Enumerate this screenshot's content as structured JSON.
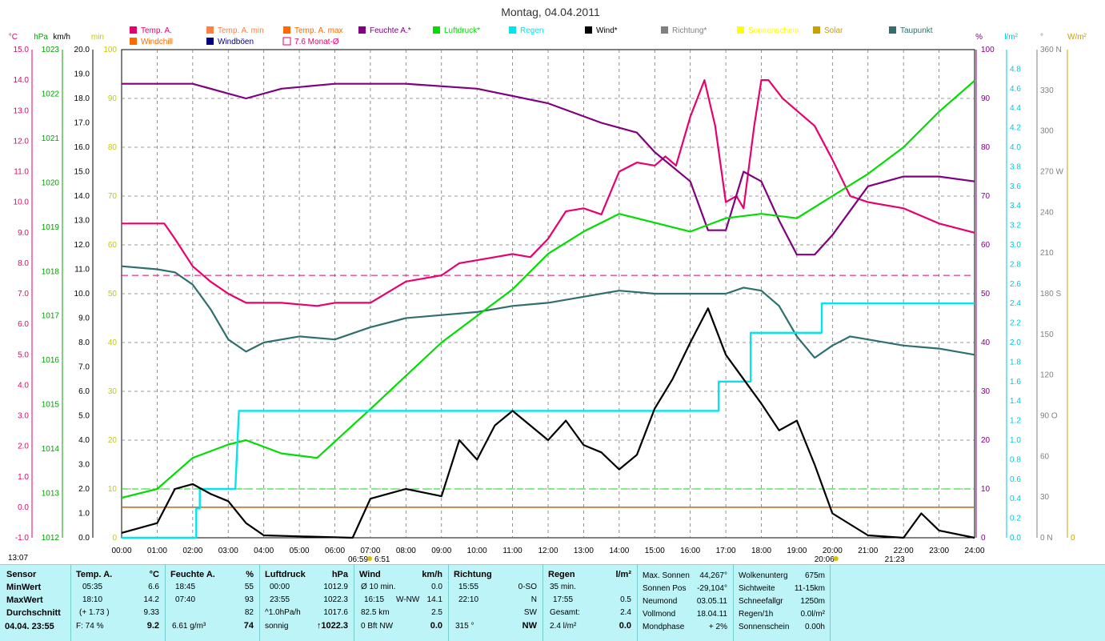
{
  "title": "Montag, 04.04.2011",
  "legend": [
    {
      "label": "Temp. A.",
      "color": "#e8006e",
      "kind": "fill"
    },
    {
      "label": "Temp. A. min",
      "color": "#ff8040",
      "kind": "fill"
    },
    {
      "label": "Temp. A. max",
      "color": "#ff6a00",
      "kind": "fill"
    },
    {
      "label": "Feuchte A.*",
      "color": "#800080",
      "kind": "fill"
    },
    {
      "label": "Luftdruck*",
      "color": "#00dd00",
      "kind": "fill"
    },
    {
      "label": "Regen",
      "color": "#00e5ee",
      "kind": "fill"
    },
    {
      "label": "Wind*",
      "color": "#000000",
      "kind": "fill"
    },
    {
      "label": "Richtung*",
      "color": "#808080",
      "kind": "fill"
    },
    {
      "label": "Sonnenschein",
      "color": "#ffff00",
      "kind": "fill"
    },
    {
      "label": "Solar",
      "color": "#c8a000",
      "kind": "fill"
    },
    {
      "label": "Taupunkt",
      "color": "#2f6f6f",
      "kind": "fill"
    },
    {
      "label": "Windchill",
      "color": "#ff6a00",
      "kind": "fill"
    },
    {
      "label": "Windböen",
      "color": "#000080",
      "kind": "fill"
    },
    {
      "label": "7.6 Monat-Ø",
      "color": "#e8006e",
      "kind": "outline"
    }
  ],
  "axis_units": {
    "temp": "°C",
    "press": "hPa",
    "wind": "km/h",
    "sun": "min",
    "hum": "%",
    "rain": "l/m²",
    "dir": "°",
    "solar": "W/m²"
  },
  "axis_colors": {
    "temp": "#e8006e",
    "press": "#00a000",
    "wind": "#000000",
    "sun": "#c8c800",
    "hum": "#800080",
    "rain": "#00c8d8",
    "dir": "#808080",
    "solar": "#c8a000"
  },
  "temp_ticks": [
    "15.0",
    "14.0",
    "13.0",
    "12.0",
    "11.0",
    "10.0",
    "9.0",
    "8.0",
    "7.0",
    "6.0",
    "5.0",
    "4.0",
    "3.0",
    "2.0",
    "1.0",
    "0.0",
    "-1.0"
  ],
  "press_ticks": [
    "1023",
    "1022",
    "1021",
    "1020",
    "1019",
    "1018",
    "1017",
    "1016",
    "1015",
    "1014",
    "1013",
    "1012"
  ],
  "wind_ticks": [
    "20.0",
    "19.0",
    "18.0",
    "17.0",
    "16.0",
    "15.0",
    "14.0",
    "13.0",
    "12.0",
    "11.0",
    "10.0",
    "9.0",
    "8.0",
    "7.0",
    "6.0",
    "5.0",
    "4.0",
    "3.0",
    "2.0",
    "1.0",
    "0.0"
  ],
  "sun_ticks": [
    "100",
    "90",
    "80",
    "70",
    "60",
    "50",
    "40",
    "30",
    "20",
    "10",
    "0"
  ],
  "hum_ticks": [
    "100",
    "90",
    "80",
    "70",
    "60",
    "50",
    "40",
    "30",
    "20",
    "10",
    "0"
  ],
  "rain_ticks": [
    "4.8",
    "4.6",
    "4.4",
    "4.2",
    "4.0",
    "3.8",
    "3.6",
    "3.4",
    "3.2",
    "3.0",
    "2.8",
    "2.6",
    "2.4",
    "2.2",
    "2.0",
    "1.8",
    "1.6",
    "1.4",
    "1.2",
    "1.0",
    "0.8",
    "0.6",
    "0.4",
    "0.2",
    "0.0"
  ],
  "dir_ticks": [
    "360 N",
    "330",
    "300",
    "270 W",
    "240",
    "210",
    "180 S",
    "150",
    "120",
    "90 O",
    "60",
    "30",
    "0 N"
  ],
  "solar_tick": "0",
  "x_ticks": [
    "00:00",
    "01:00",
    "02:00",
    "03:00",
    "04:00",
    "05:00",
    "06:00",
    "07:00",
    "08:00",
    "09:00",
    "10:00",
    "11:00",
    "12:00",
    "13:00",
    "14:00",
    "15:00",
    "16:00",
    "17:00",
    "18:00",
    "19:00",
    "20:00",
    "21:00",
    "22:00",
    "23:00",
    "24:00"
  ],
  "sun_events": {
    "now": "13:07",
    "sunrise": "06:59",
    "civil_rise": "6:51",
    "sunset": "20:06",
    "civil_set": "21:23"
  },
  "chart_data": {
    "type": "line",
    "title": "Montag, 04.04.2011",
    "x_range": [
      0,
      24
    ],
    "ylim": {
      "temp": [
        -1,
        15
      ],
      "press": [
        1012,
        1023
      ],
      "wind": [
        0,
        20
      ],
      "hum": [
        0,
        100
      ],
      "rain": [
        0,
        5
      ],
      "dir": [
        0,
        360
      ]
    },
    "series": [
      {
        "name": "Temp. A.",
        "axis": "temp",
        "color": "#e8006e",
        "points": [
          [
            0,
            9.3
          ],
          [
            1.2,
            9.3
          ],
          [
            1.5,
            8.8
          ],
          [
            2,
            7.9
          ],
          [
            2.5,
            7.4
          ],
          [
            3,
            7.0
          ],
          [
            3.5,
            6.7
          ],
          [
            4.5,
            6.7
          ],
          [
            5.5,
            6.6
          ],
          [
            6,
            6.7
          ],
          [
            7,
            6.7
          ],
          [
            8,
            7.4
          ],
          [
            9,
            7.6
          ],
          [
            9.5,
            8.0
          ],
          [
            10.5,
            8.2
          ],
          [
            11,
            8.3
          ],
          [
            11.5,
            8.2
          ],
          [
            12,
            8.8
          ],
          [
            12.5,
            9.7
          ],
          [
            13,
            9.8
          ],
          [
            13.5,
            9.6
          ],
          [
            14,
            11.0
          ],
          [
            14.5,
            11.3
          ],
          [
            15,
            11.2
          ],
          [
            15.3,
            11.5
          ],
          [
            15.6,
            11.2
          ],
          [
            16,
            12.8
          ],
          [
            16.4,
            14.0
          ],
          [
            16.7,
            12.5
          ],
          [
            17,
            10.0
          ],
          [
            17.3,
            10.2
          ],
          [
            17.5,
            9.8
          ],
          [
            17.8,
            12.5
          ],
          [
            18,
            14.0
          ],
          [
            18.2,
            14.0
          ],
          [
            18.6,
            13.4
          ],
          [
            19,
            13.0
          ],
          [
            19.5,
            12.5
          ],
          [
            20,
            11.4
          ],
          [
            20.5,
            10.2
          ],
          [
            21,
            10.0
          ],
          [
            22,
            9.8
          ],
          [
            23,
            9.3
          ],
          [
            24,
            9.0
          ]
        ]
      },
      {
        "name": "Taupunkt",
        "axis": "temp",
        "color": "#2f6f6f",
        "points": [
          [
            0,
            7.9
          ],
          [
            1,
            7.8
          ],
          [
            1.5,
            7.7
          ],
          [
            2,
            7.3
          ],
          [
            2.5,
            6.5
          ],
          [
            3,
            5.5
          ],
          [
            3.5,
            5.1
          ],
          [
            4,
            5.4
          ],
          [
            5,
            5.6
          ],
          [
            6,
            5.5
          ],
          [
            7,
            5.9
          ],
          [
            8,
            6.2
          ],
          [
            9,
            6.3
          ],
          [
            10,
            6.4
          ],
          [
            11,
            6.6
          ],
          [
            12,
            6.7
          ],
          [
            13,
            6.9
          ],
          [
            14,
            7.1
          ],
          [
            15,
            7.0
          ],
          [
            16,
            7.0
          ],
          [
            17,
            7.0
          ],
          [
            17.5,
            7.2
          ],
          [
            18,
            7.1
          ],
          [
            18.5,
            6.6
          ],
          [
            19,
            5.6
          ],
          [
            19.5,
            4.9
          ],
          [
            20,
            5.3
          ],
          [
            20.5,
            5.6
          ],
          [
            21,
            5.5
          ],
          [
            22,
            5.3
          ],
          [
            23,
            5.2
          ],
          [
            24,
            5.0
          ]
        ]
      },
      {
        "name": "Feuchte A.*",
        "axis": "hum",
        "color": "#800080",
        "points": [
          [
            0,
            93
          ],
          [
            2,
            93
          ],
          [
            3,
            91
          ],
          [
            3.5,
            90
          ],
          [
            4.5,
            92
          ],
          [
            6,
            93
          ],
          [
            8,
            93
          ],
          [
            10,
            92
          ],
          [
            12,
            89
          ],
          [
            13.5,
            85
          ],
          [
            14.5,
            83
          ],
          [
            15,
            79
          ],
          [
            16,
            73
          ],
          [
            16.5,
            63
          ],
          [
            17,
            63
          ],
          [
            17.5,
            75
          ],
          [
            18,
            73
          ],
          [
            18.5,
            65
          ],
          [
            19,
            58
          ],
          [
            19.5,
            58
          ],
          [
            20,
            62
          ],
          [
            20.5,
            67
          ],
          [
            21,
            72
          ],
          [
            22,
            74
          ],
          [
            23,
            74
          ],
          [
            24,
            73
          ]
        ]
      },
      {
        "name": "Luftdruck*",
        "axis": "press",
        "color": "#00dd00",
        "points": [
          [
            0,
            1012.9
          ],
          [
            1,
            1013.1
          ],
          [
            2,
            1013.8
          ],
          [
            3,
            1014.1
          ],
          [
            3.5,
            1014.2
          ],
          [
            4.5,
            1013.9
          ],
          [
            5.5,
            1013.8
          ],
          [
            7,
            1014.9
          ],
          [
            9,
            1016.4
          ],
          [
            10,
            1017.0
          ],
          [
            11,
            1017.6
          ],
          [
            12,
            1018.4
          ],
          [
            13,
            1018.9
          ],
          [
            14,
            1019.3
          ],
          [
            15,
            1019.1
          ],
          [
            16,
            1018.9
          ],
          [
            17,
            1019.2
          ],
          [
            18,
            1019.3
          ],
          [
            19,
            1019.2
          ],
          [
            20,
            1019.7
          ],
          [
            21,
            1020.2
          ],
          [
            22,
            1020.8
          ],
          [
            23,
            1021.6
          ],
          [
            24,
            1022.3
          ]
        ]
      },
      {
        "name": "Regen",
        "axis": "rain",
        "color": "#00e5ee",
        "points": [
          [
            0,
            0
          ],
          [
            2.1,
            0
          ],
          [
            2.1,
            0.3
          ],
          [
            2.2,
            0.3
          ],
          [
            2.2,
            0.5
          ],
          [
            3.2,
            0.5
          ],
          [
            3.3,
            1.3
          ],
          [
            16.8,
            1.3
          ],
          [
            16.8,
            1.6
          ],
          [
            17.7,
            1.6
          ],
          [
            17.7,
            2.1
          ],
          [
            19.7,
            2.1
          ],
          [
            19.7,
            2.4
          ],
          [
            24,
            2.4
          ]
        ]
      },
      {
        "name": "Wind*",
        "axis": "wind",
        "color": "#000000",
        "points": [
          [
            0,
            0.2
          ],
          [
            1,
            0.6
          ],
          [
            1.5,
            2.0
          ],
          [
            2,
            2.2
          ],
          [
            2.5,
            1.8
          ],
          [
            3,
            1.5
          ],
          [
            3.5,
            0.6
          ],
          [
            4,
            0.1
          ],
          [
            6.5,
            0.0
          ],
          [
            7,
            1.6
          ],
          [
            7.5,
            1.8
          ],
          [
            8,
            2.0
          ],
          [
            9,
            1.7
          ],
          [
            9.5,
            4.0
          ],
          [
            10,
            3.2
          ],
          [
            10.5,
            4.6
          ],
          [
            11,
            5.2
          ],
          [
            12,
            4.0
          ],
          [
            12.5,
            4.8
          ],
          [
            13,
            3.8
          ],
          [
            13.5,
            3.5
          ],
          [
            14,
            2.8
          ],
          [
            14.5,
            3.4
          ],
          [
            15,
            5.3
          ],
          [
            15.5,
            6.5
          ],
          [
            16,
            8.0
          ],
          [
            16.5,
            9.4
          ],
          [
            17,
            7.5
          ],
          [
            17.5,
            6.5
          ],
          [
            18,
            5.5
          ],
          [
            18.5,
            4.4
          ],
          [
            19,
            4.8
          ],
          [
            19.5,
            3.0
          ],
          [
            20,
            1.0
          ],
          [
            21,
            0.1
          ],
          [
            22,
            0.0
          ],
          [
            22.5,
            1.0
          ],
          [
            23,
            0.3
          ],
          [
            24,
            0.0
          ]
        ]
      }
    ],
    "reference_lines": [
      {
        "name": "7.6 Monat-Ø",
        "axis": "temp",
        "value": 7.6,
        "color": "#e8006e"
      },
      {
        "name": "Sonnenschein",
        "axis": "sun",
        "value": 10,
        "color": "#00dd00"
      },
      {
        "name": "Solar",
        "axis": "temp",
        "value": 0.0,
        "color": "#c86400"
      }
    ]
  },
  "stats": {
    "sensor": {
      "label": "Sensor",
      "rows": [
        "MinWert",
        "MaxWert",
        "Durchschnitt"
      ],
      "footer": "04.04.  23:55"
    },
    "temp": {
      "head": "Temp. A.",
      "unit": "°C",
      "min_t": "05:35",
      "min_v": "6.6",
      "max_t": "18:10",
      "max_v": "14.2",
      "avg_t": "(+ 1.73 )",
      "avg_v": "9.33",
      "cur_l": "F: 74 %",
      "cur_v": "9.2"
    },
    "hum": {
      "head": "Feuchte A.",
      "unit": "%",
      "min_t": "18:45",
      "min_v": "55",
      "max_t": "07:40",
      "max_v": "93",
      "avg_v": "82",
      "cur_l": "6.61 g/m³",
      "cur_v": "74"
    },
    "press": {
      "head": "Luftdruck",
      "unit": "hPa",
      "min_t": "00:00",
      "min_v": "1012.9",
      "max_t": "23:55",
      "max_v": "1022.3",
      "avg_t": "^1.0hPa/h",
      "avg_v": "1017.6",
      "cur_l": "sonnig",
      "cur_v": "↑1022.3"
    },
    "wind": {
      "head": "Wind",
      "unit": "km/h",
      "r1_l": "Ø 10 min.",
      "r1_v": "0.0",
      "r2_l": "16:15",
      "r2_m": "W-NW",
      "r2_v": "14.1",
      "r3_l": "82.5 km",
      "r3_v": "2.5",
      "cur_l": "0 Bft NW",
      "cur_v": "0.0"
    },
    "dir": {
      "head": "Richtung",
      "r1_l": "15:55",
      "r1_v": "0-SO",
      "r2_l": "22:10",
      "r2_v": "N",
      "r3_v": "SW",
      "cur_l": "315 °",
      "cur_v": "NW"
    },
    "rain": {
      "head": "Regen",
      "unit": "l/m²",
      "r1_l": "35 min.",
      "r2_l": "17:55",
      "r2_v": "0.5",
      "r3_l": "Gesamt:",
      "r3_v": "2.4",
      "cur_l": "2.4 l/m²",
      "cur_v": "0.0"
    },
    "astro": [
      {
        "l": "Max. Sonnen",
        "v": "44,267°"
      },
      {
        "l": "Sonnen Pos",
        "v": "-29,104°"
      },
      {
        "l": "Neumond",
        "v": "03.05.11"
      },
      {
        "l": "Vollmond",
        "v": "18.04.11"
      },
      {
        "l": "Mondphase",
        "v": "+ 2%"
      }
    ],
    "cloud": [
      {
        "l": "Wolkenunterg",
        "v": "675m"
      },
      {
        "l": "Sichtweite",
        "v": "11-15km"
      },
      {
        "l": "Schneefallgr",
        "v": "1250m"
      },
      {
        "l": "Regen/1h",
        "v": "0.0l/m²"
      },
      {
        "l": "Sonnenschein",
        "v": "0.00h"
      }
    ]
  }
}
